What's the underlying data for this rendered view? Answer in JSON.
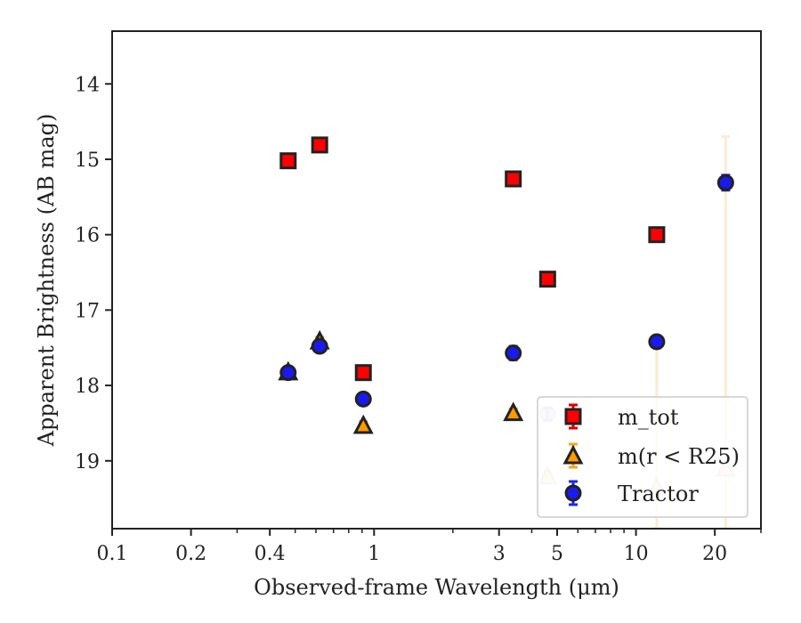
{
  "chart_data": {
    "type": "scatter",
    "xlabel": "Observed-frame Wavelength (μm)",
    "ylabel": "Apparent Brightness (AB mag)",
    "x_scale": "log",
    "xlim": [
      0.1,
      30
    ],
    "ylim": [
      19.9,
      13.3
    ],
    "y_inverted": true,
    "x_ticks": [
      0.1,
      0.2,
      0.4,
      1,
      3,
      5,
      10,
      20
    ],
    "x_tick_labels": [
      "0.1",
      "0.2",
      "0.4",
      "1",
      "3",
      "5",
      "10",
      "20"
    ],
    "y_ticks": [
      14,
      15,
      16,
      17,
      18,
      19
    ],
    "y_tick_labels": [
      "14",
      "15",
      "16",
      "17",
      "18",
      "19"
    ],
    "grid": false,
    "legend_position": "lower-right",
    "series": [
      {
        "name": "m_tot",
        "legend_label": "m_tot",
        "marker": "square",
        "face_color": "#ff0000",
        "error_color": "#dd0000",
        "points": [
          {
            "x": 0.47,
            "y": 15.02,
            "err": 0.05
          },
          {
            "x": 0.62,
            "y": 14.81,
            "err": 0.05
          },
          {
            "x": 0.91,
            "y": 17.83,
            "err": 0.05
          },
          {
            "x": 3.4,
            "y": 15.26,
            "err": 0.05
          },
          {
            "x": 4.6,
            "y": 16.59,
            "err": 0.05
          },
          {
            "x": 12.0,
            "y": 16.0,
            "err": 0.05
          }
        ]
      },
      {
        "name": "m(r<R25)",
        "legend_label": "m(r < R25)",
        "marker": "triangle",
        "face_color": "#ff9a00",
        "error_color": "#f5a623",
        "points": [
          {
            "x": 0.47,
            "y": 17.82,
            "err": 0.05,
            "faded": false
          },
          {
            "x": 0.62,
            "y": 17.41,
            "err": 0.05,
            "faded": false
          },
          {
            "x": 0.91,
            "y": 18.53,
            "err": 0.05,
            "faded": false
          },
          {
            "x": 3.4,
            "y": 18.36,
            "err": 0.05,
            "faded": false
          },
          {
            "x": 4.6,
            "y": 19.2,
            "err": 0.05,
            "faded": true
          },
          {
            "x": 12.0,
            "y": 19.35,
            "err": 2.0,
            "faded": true
          },
          {
            "x": 22.0,
            "y": 19.1,
            "err": 4.4,
            "faded": true
          }
        ]
      },
      {
        "name": "Tractor",
        "legend_label": "Tractor",
        "marker": "circle",
        "face_color": "#1a1aee",
        "error_color": "#2222ee",
        "points": [
          {
            "x": 0.47,
            "y": 17.83,
            "err": 0.06,
            "faded": false
          },
          {
            "x": 0.62,
            "y": 17.48,
            "err": 0.06,
            "faded": false
          },
          {
            "x": 0.91,
            "y": 18.18,
            "err": 0.08,
            "faded": false
          },
          {
            "x": 3.4,
            "y": 17.57,
            "err": 0.09,
            "faded": false
          },
          {
            "x": 4.6,
            "y": 18.38,
            "err": 0.08,
            "faded": true
          },
          {
            "x": 12.0,
            "y": 17.42,
            "err": 0.08,
            "faded": false
          },
          {
            "x": 22.0,
            "y": 15.31,
            "err": 0.1,
            "faded": false
          }
        ]
      }
    ]
  }
}
